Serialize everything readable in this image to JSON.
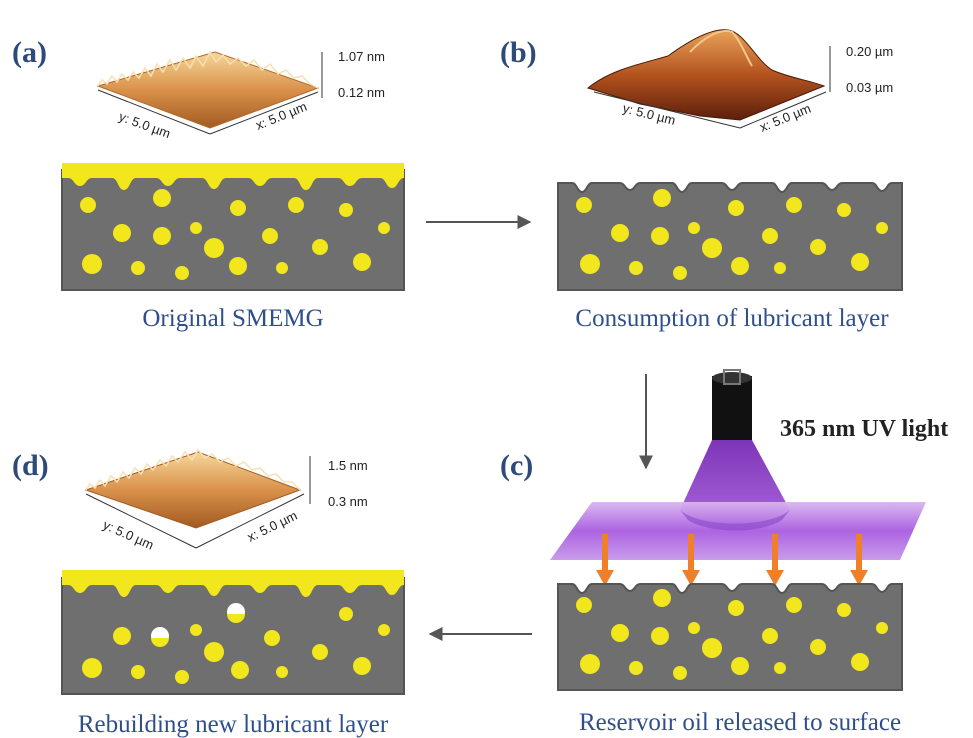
{
  "panels": {
    "a": {
      "label": "(a)",
      "caption": "Original SMEMG",
      "afm": {
        "z_max": "1.07 nm",
        "z_min": "0.12 nm",
        "x_axis": "x: 5.0 µm",
        "y_axis": "y: 5.0 µm"
      },
      "lubricant_layer": true
    },
    "b": {
      "label": "(b)",
      "caption": "Consumption of  lubricant layer",
      "afm": {
        "z_max": "0.20 µm",
        "z_min": "0.03 µm",
        "x_axis": "x: 5.0 µm",
        "y_axis": "y: 5.0 µm"
      },
      "lubricant_layer": false
    },
    "c": {
      "label": "(c)",
      "caption": "Reservoir oil released to surface",
      "uv_label": "365 nm UV light",
      "lubricant_layer": false
    },
    "d": {
      "label": "(d)",
      "caption": "Rebuilding new lubricant layer",
      "afm": {
        "z_max": "1.5 nm",
        "z_min": "0.3 nm",
        "x_axis": "x: 5.0 µm",
        "y_axis": "y: 5.0 µm"
      },
      "lubricant_layer": true
    }
  },
  "colors": {
    "matrix": "#6f6f6f",
    "oil": "#f2e61c",
    "uv_purple": "#9b4fd6",
    "arrow_orange": "#f07f2a",
    "flow_arrow": "#555555"
  }
}
